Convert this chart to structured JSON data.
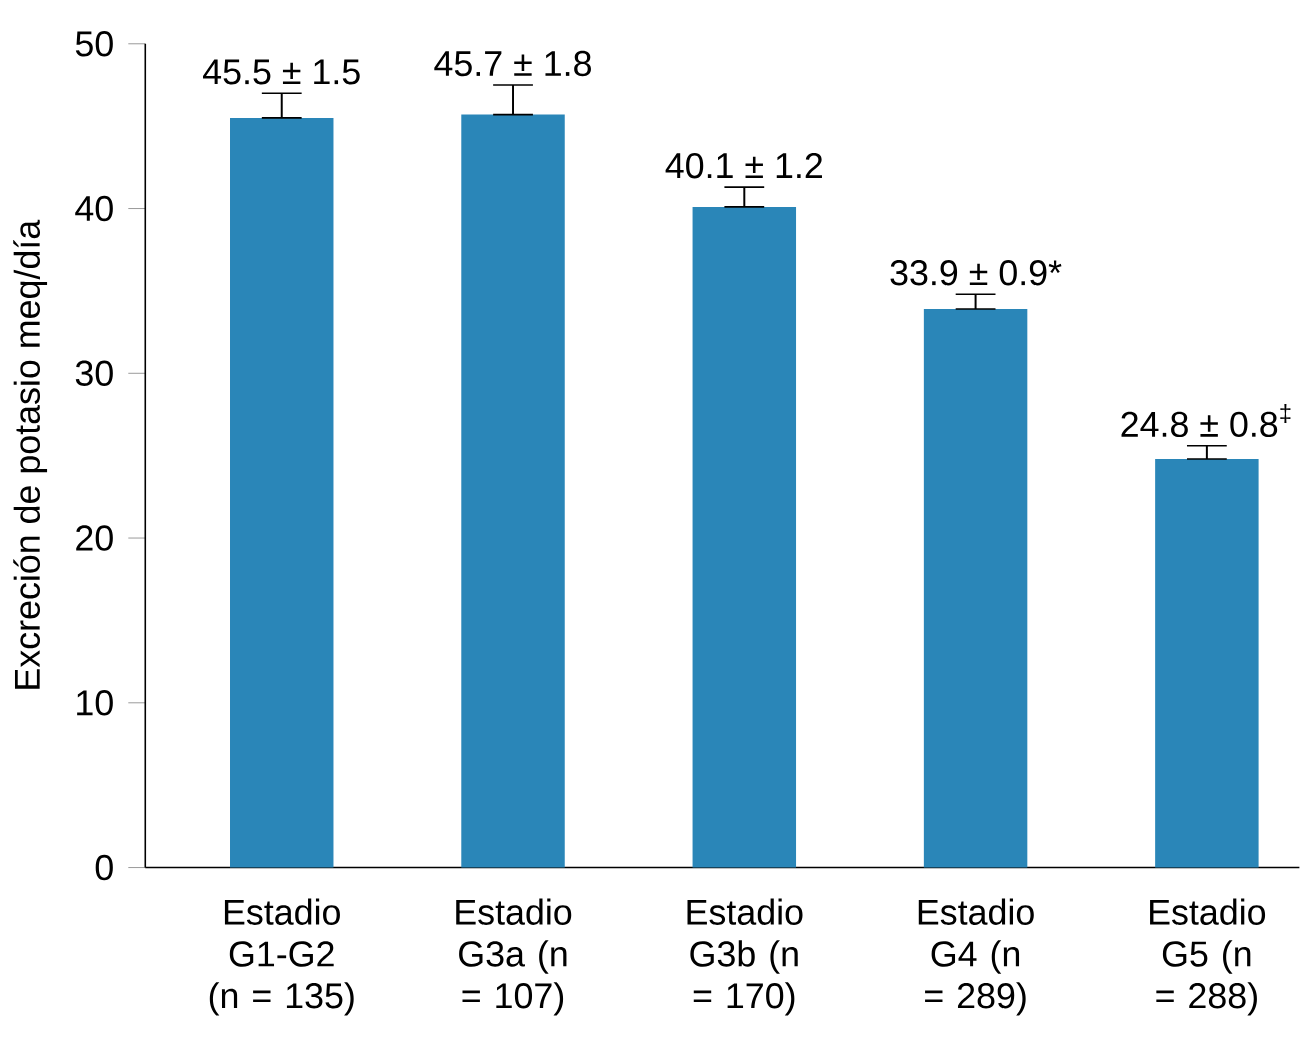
{
  "chart_data": {
    "type": "bar",
    "ylabel": "Excreción de potasio meq/día",
    "categories": [
      "Estadio G1-G2 (n = 135)",
      "Estadio G3a (n = 107)",
      "Estadio G3b (n = 170)",
      "Estadio G4 (n = 289)",
      "Estadio G5 (n = 288)"
    ],
    "values": [
      45.5,
      45.7,
      40.1,
      33.9,
      24.8
    ],
    "errors": [
      [
        45.5,
        47.0
      ],
      [
        45.7,
        47.5
      ],
      [
        40.1,
        41.3
      ],
      [
        33.9,
        34.8
      ],
      [
        24.8,
        25.6
      ]
    ],
    "value_labels": [
      "45.5 ± 1.5",
      "45.7 ± 1.8",
      "40.1 ± 1.2",
      "33.9 ± 0.9*",
      "24.8 ± 0.8$^{‡}$"
    ],
    "color": "#2a86b8",
    "ylim": [
      0,
      50
    ],
    "yticks": [
      0,
      10,
      20,
      30,
      40,
      50
    ]
  }
}
